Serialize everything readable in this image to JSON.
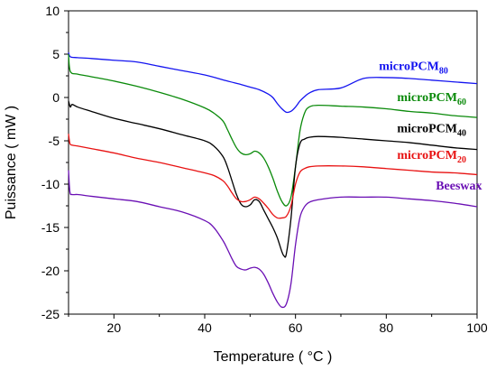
{
  "chart_data": {
    "type": "line",
    "xlabel": "Temperature ( °C )",
    "ylabel": "Puissance ( mW )",
    "xlim": [
      10,
      100
    ],
    "ylim": [
      -25,
      10
    ],
    "xticks": [
      20,
      40,
      60,
      80,
      100
    ],
    "yticks": [
      10,
      5,
      0,
      -5,
      -10,
      -15,
      -20,
      -25
    ],
    "series": [
      {
        "name": "microPCM80",
        "label_main": "microPCM",
        "label_sub": "80",
        "color": "#1414f0",
        "x": [
          10,
          10.4,
          12,
          15,
          20,
          25,
          30,
          35,
          40,
          45,
          48,
          50,
          52,
          54,
          55,
          56,
          57,
          58,
          59,
          60,
          61,
          62,
          63,
          65,
          70,
          75,
          80,
          85,
          90,
          95,
          100
        ],
        "y": [
          5.2,
          4.7,
          4.6,
          4.5,
          4.3,
          4.1,
          3.6,
          3.1,
          2.6,
          1.9,
          1.5,
          1.2,
          0.9,
          0.4,
          0.0,
          -0.7,
          -1.3,
          -1.7,
          -1.6,
          -1.1,
          -0.4,
          0.1,
          0.5,
          0.9,
          1.1,
          2.2,
          2.3,
          2.2,
          2.0,
          1.8,
          1.6
        ]
      },
      {
        "name": "microPCM60",
        "label_main": "microPCM",
        "label_sub": "60",
        "color": "#0a8a0a",
        "x": [
          10,
          10.4,
          12,
          15,
          20,
          25,
          30,
          35,
          40,
          42,
          44,
          45,
          46,
          47,
          48,
          49,
          50,
          51,
          52,
          53,
          54,
          55,
          56,
          57,
          58,
          59,
          60,
          61,
          62,
          63,
          65,
          70,
          75,
          80,
          85,
          90,
          95,
          100
        ],
        "y": [
          5.0,
          3.0,
          2.7,
          2.4,
          1.9,
          1.3,
          0.6,
          -0.2,
          -1.2,
          -1.8,
          -2.7,
          -3.7,
          -4.8,
          -5.8,
          -6.4,
          -6.6,
          -6.5,
          -6.2,
          -6.4,
          -7.0,
          -8.0,
          -9.3,
          -10.8,
          -12.0,
          -12.5,
          -11.5,
          -8.0,
          -3.8,
          -1.8,
          -1.1,
          -0.9,
          -1.0,
          -1.1,
          -1.3,
          -1.6,
          -1.8,
          -2.1,
          -2.3
        ]
      },
      {
        "name": "microPCM40",
        "label_main": "microPCM",
        "label_sub": "40",
        "color": "#000000",
        "x": [
          10,
          10.4,
          10.8,
          12,
          15,
          20,
          25,
          30,
          35,
          40,
          42,
          44,
          45,
          46,
          47,
          48,
          49,
          50,
          51,
          52,
          53,
          54,
          55,
          56,
          57,
          57.5,
          58,
          59,
          60,
          61,
          62,
          63,
          65,
          70,
          75,
          80,
          85,
          90,
          95,
          100
        ],
        "y": [
          -0.4,
          -1.1,
          -0.8,
          -1.1,
          -1.6,
          -2.4,
          -3.0,
          -3.6,
          -4.3,
          -5.0,
          -5.6,
          -6.8,
          -8.0,
          -9.6,
          -11.2,
          -12.3,
          -12.6,
          -12.4,
          -11.8,
          -12.0,
          -13.0,
          -14.0,
          -15.0,
          -16.2,
          -17.8,
          -18.3,
          -18.0,
          -14.0,
          -8.0,
          -5.3,
          -4.8,
          -4.6,
          -4.5,
          -4.6,
          -4.8,
          -5.0,
          -5.2,
          -5.5,
          -5.8,
          -6.0
        ]
      },
      {
        "name": "microPCM20",
        "label_main": "microPCM",
        "label_sub": "20",
        "color": "#e81212",
        "x": [
          10,
          10.3,
          10.8,
          12,
          15,
          20,
          25,
          30,
          35,
          40,
          42,
          44,
          45,
          46,
          47,
          48,
          49,
          50,
          51,
          52,
          53,
          54,
          55,
          56,
          57,
          58,
          59,
          60,
          61,
          62,
          63,
          65,
          70,
          75,
          80,
          85,
          90,
          95,
          100
        ],
        "y": [
          -4.2,
          -5.3,
          -5.5,
          -5.6,
          -5.9,
          -6.4,
          -7.0,
          -7.5,
          -8.1,
          -8.7,
          -9.0,
          -9.6,
          -10.2,
          -11.0,
          -11.7,
          -12.0,
          -12.0,
          -11.8,
          -11.5,
          -11.7,
          -12.2,
          -12.8,
          -13.5,
          -13.9,
          -13.9,
          -13.7,
          -12.5,
          -10.0,
          -8.6,
          -8.2,
          -8.0,
          -7.9,
          -7.9,
          -8.0,
          -8.2,
          -8.4,
          -8.6,
          -8.7,
          -8.9
        ]
      },
      {
        "name": "Beeswax",
        "label_main": "Beeswax",
        "label_sub": "",
        "color": "#6a0fb4",
        "x": [
          10,
          10.3,
          10.8,
          12,
          15,
          20,
          25,
          30,
          35,
          40,
          42,
          44,
          45,
          46,
          47,
          48,
          49,
          50,
          51,
          52,
          53,
          54,
          55,
          56,
          57,
          58,
          59,
          60,
          61,
          62,
          63,
          65,
          70,
          75,
          80,
          85,
          90,
          95,
          100
        ],
        "y": [
          -8.4,
          -10.9,
          -11.2,
          -11.2,
          -11.4,
          -11.7,
          -12.0,
          -12.6,
          -13.2,
          -14.2,
          -15.0,
          -16.5,
          -17.5,
          -18.6,
          -19.5,
          -19.8,
          -19.9,
          -19.7,
          -19.6,
          -19.8,
          -20.4,
          -21.4,
          -22.6,
          -23.6,
          -24.2,
          -23.8,
          -21.5,
          -17.0,
          -13.8,
          -12.6,
          -12.1,
          -11.8,
          -11.5,
          -11.5,
          -11.5,
          -11.7,
          -11.9,
          -12.2,
          -12.6
        ]
      }
    ],
    "annotations": [
      {
        "series": "microPCM80",
        "x": 86,
        "y": 3.2
      },
      {
        "series": "microPCM60",
        "x": 90,
        "y": -0.4
      },
      {
        "series": "microPCM40",
        "x": 90,
        "y": -4.0
      },
      {
        "series": "microPCM20",
        "x": 90,
        "y": -7.1
      },
      {
        "series": "Beeswax",
        "x": 96,
        "y": -10.6
      }
    ]
  }
}
